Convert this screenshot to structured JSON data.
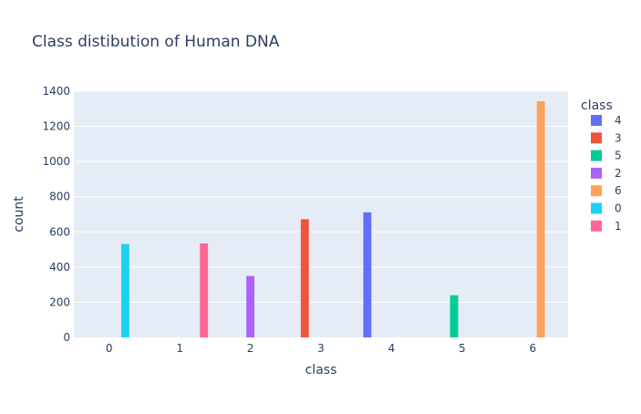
{
  "chart_data": {
    "type": "bar",
    "title": "Class distibution of Human DNA",
    "xlabel": "class",
    "ylabel": "count",
    "categories": [
      "0",
      "1",
      "2",
      "3",
      "4",
      "5",
      "6"
    ],
    "ylim": [
      0,
      1400
    ],
    "yticks": [
      0,
      200,
      400,
      600,
      800,
      1000,
      1200,
      1400
    ],
    "grid": true,
    "legend_title": "class",
    "legend_position": "right",
    "series": [
      {
        "name": "4",
        "color": "#636efa",
        "x": "4",
        "value": 711
      },
      {
        "name": "3",
        "color": "#ef553b",
        "x": "3",
        "value": 672
      },
      {
        "name": "5",
        "color": "#00cc96",
        "x": "5",
        "value": 240
      },
      {
        "name": "2",
        "color": "#ab63fa",
        "x": "2",
        "value": 349
      },
      {
        "name": "6",
        "color": "#ffa15a",
        "x": "6",
        "value": 1343
      },
      {
        "name": "0",
        "color": "#19d3f3",
        "x": "0",
        "value": 531
      },
      {
        "name": "1",
        "color": "#ff6692",
        "x": "1",
        "value": 534
      }
    ]
  }
}
